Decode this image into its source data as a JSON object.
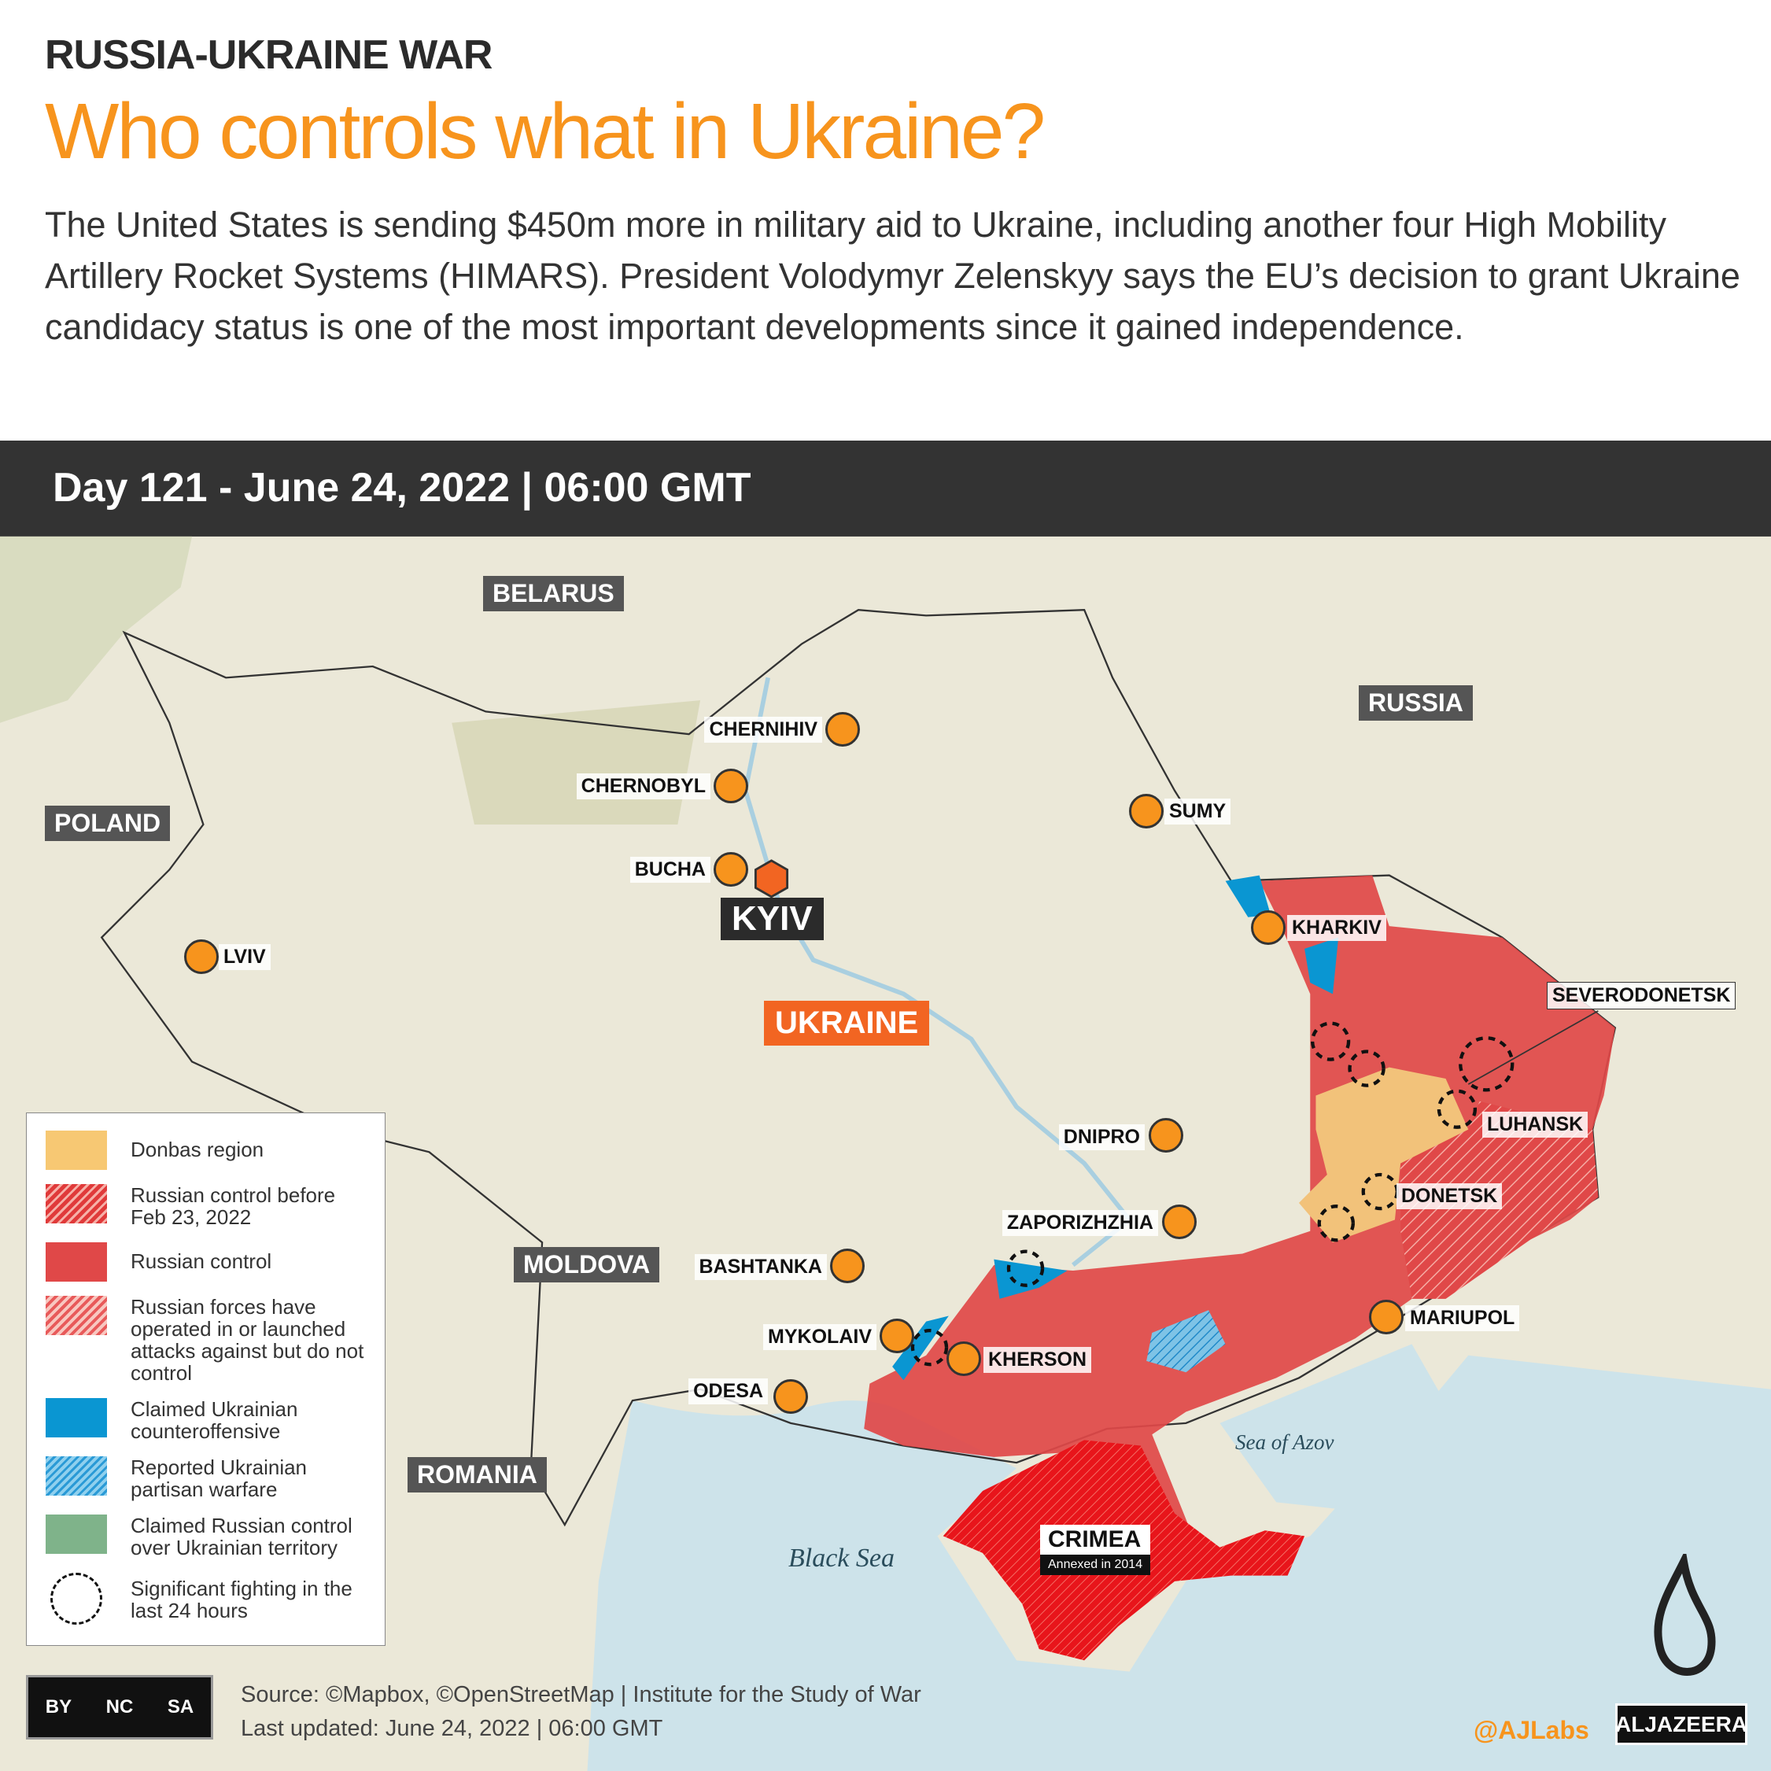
{
  "header": {
    "kicker": "RUSSIA-UKRAINE WAR",
    "title": "Who controls what in Ukraine?",
    "intro": "The United States is sending $450m more in military aid to Ukraine, including another four High Mobility Artillery Rocket Systems (HIMARS). President Volodymyr Zelenskyy says the EU’s decision to grant Ukraine candidacy status is one of the most important developments since it gained independence."
  },
  "daybar": {
    "text": "Day 121 - June 24, 2022 | 06:00 GMT"
  },
  "countries": {
    "belarus": "BELARUS",
    "russia": "RUSSIA",
    "poland": "POLAND",
    "ukraine": "UKRAINE",
    "moldova": "MOLDOVA",
    "romania": "ROMANIA"
  },
  "cities": {
    "chernihiv": "CHERNIHIV",
    "chernobyl": "CHERNOBYL",
    "bucha": "BUCHA",
    "kyiv": "KYIV",
    "sumy": "SUMY",
    "kharkiv": "KHARKIV",
    "lviv": "LVIV",
    "severodonetsk": "SEVERODONETSK",
    "luhansk": "LUHANSK",
    "donetsk": "DONETSK",
    "dnipro": "DNIPRO",
    "zaporizhzhia": "ZAPORIZHZHIA",
    "bashtanka": "BASHTANKA",
    "mykolaiv": "MYKOLAIV",
    "kherson": "KHERSON",
    "odesa": "ODESA",
    "mariupol": "MARIUPOL"
  },
  "crimea": {
    "name": "CRIMEA",
    "note": "Annexed in 2014"
  },
  "seas": {
    "azov": "Sea of Azov",
    "black": "Black Sea"
  },
  "legend": [
    {
      "label": "Donbas region",
      "color": "#f7c873"
    },
    {
      "label": "Russian control before Feb 23, 2022",
      "color": "#e03a3a"
    },
    {
      "label": "Russian control",
      "color": "#e04848"
    },
    {
      "label": "Russian forces have operated in or launched attacks against but do not control",
      "color": "#e85a5a"
    },
    {
      "label": "Claimed Ukrainian counteroffensive",
      "color": "#0a96d2"
    },
    {
      "label": "Reported Ukrainian partisan warfare",
      "color": "#2a9ad6"
    },
    {
      "label": "Claimed Russian control over Ukrainian territory",
      "color": "#7fb38a"
    },
    {
      "label": "Significant fighting in the last 24 hours",
      "color": "#000000"
    }
  ],
  "footer": {
    "source": "Source: ©Mapbox, ©OpenStreetMap  |  Institute for the Study of War",
    "updated": "Last updated: June 24, 2022  |  06:00 GMT",
    "handle": "@AJLabs",
    "brand": "ALJAZEERA",
    "license": [
      "BY",
      "NC",
      "SA"
    ],
    "license_logo": "cc"
  },
  "colors": {
    "accent": "#f7941d",
    "russian_control": "#e04848",
    "crimea": "#e8151b",
    "donbas": "#f7c873",
    "ukrainian": "#0a96d2"
  }
}
